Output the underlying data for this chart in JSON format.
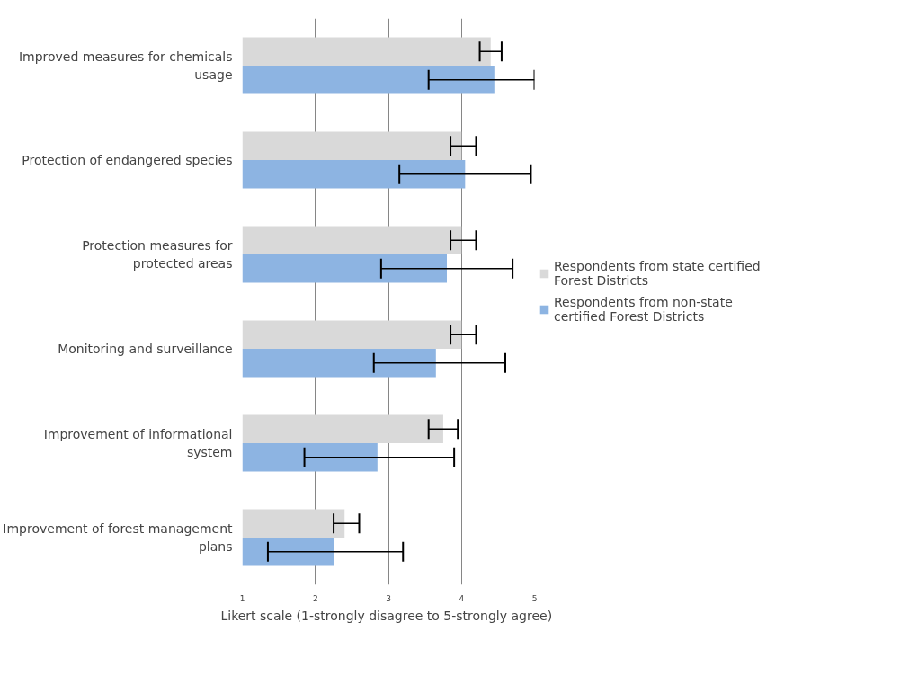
{
  "chart_data": {
    "type": "bar",
    "orientation": "horizontal",
    "xlabel": "Likert  scale (1-strongly disagree to 5-strongly agree)",
    "categories": [
      "Improved measures for chemicals usage",
      "Protection of endangered species",
      "Protection measures for protected areas",
      "Monitoring and surveillance",
      "Improvement of informational system",
      "Improvement of forest management plans"
    ],
    "series": [
      {
        "name": "Respondents from state certified Forest Districts",
        "color": "#d9d9d9",
        "values": [
          4.4,
          4.0,
          4.0,
          4.0,
          3.75,
          2.4
        ],
        "errors": [
          [
            4.25,
            4.55
          ],
          [
            3.85,
            4.2
          ],
          [
            3.85,
            4.2
          ],
          [
            3.85,
            4.2
          ],
          [
            3.55,
            3.95
          ],
          [
            2.25,
            2.6
          ]
        ]
      },
      {
        "name": "Respondents from non-state certified Forest Districts",
        "color": "#8db4e2",
        "values": [
          4.45,
          4.05,
          3.8,
          3.65,
          2.85,
          2.25
        ],
        "errors": [
          [
            3.55,
            5.0
          ],
          [
            3.15,
            4.95
          ],
          [
            2.9,
            4.7
          ],
          [
            2.8,
            4.6
          ],
          [
            1.85,
            3.9
          ],
          [
            1.35,
            3.2
          ]
        ]
      }
    ],
    "xlim": [
      1,
      5
    ],
    "xticks": [
      1,
      2,
      3,
      4,
      5
    ],
    "grid": "x",
    "legend": "right"
  }
}
